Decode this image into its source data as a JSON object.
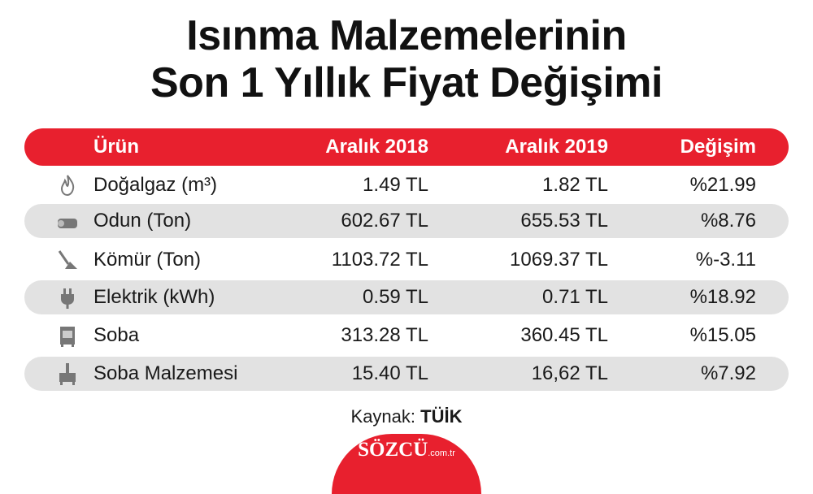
{
  "header": {
    "title": [
      "Isınma Malzemelerinin",
      "Son 1 Yıllık Fiyat Değişimi"
    ]
  },
  "table": {
    "columns": [
      "Ürün",
      "Aralık 2018",
      "Aralık 2019",
      "Değişim"
    ],
    "rows": [
      [
        "Doğalgaz (m³)",
        "1.49 TL",
        "1.82 TL",
        "%21.99"
      ],
      [
        "Odun (Ton)",
        "602.67 TL",
        "655.53 TL",
        "%8.76"
      ],
      [
        "Kömür (Ton)",
        "1103.72 TL",
        "1069.37 TL",
        "%-3.11"
      ],
      [
        "Elektrik (kWh)",
        "0.59 TL",
        "0.71 TL",
        "%18.92"
      ],
      [
        "Soba",
        "313.28 TL",
        "360.45 TL",
        "%15.05"
      ],
      [
        "Soba Malzemesi",
        "15.40 TL",
        "16,62 TL",
        "%7.92"
      ]
    ]
  },
  "footer": {
    "source_label": "Kaynak:",
    "source": "TÜİK",
    "logo": "SÖZCÜ",
    "logo_domain": ".com.tr"
  }
}
